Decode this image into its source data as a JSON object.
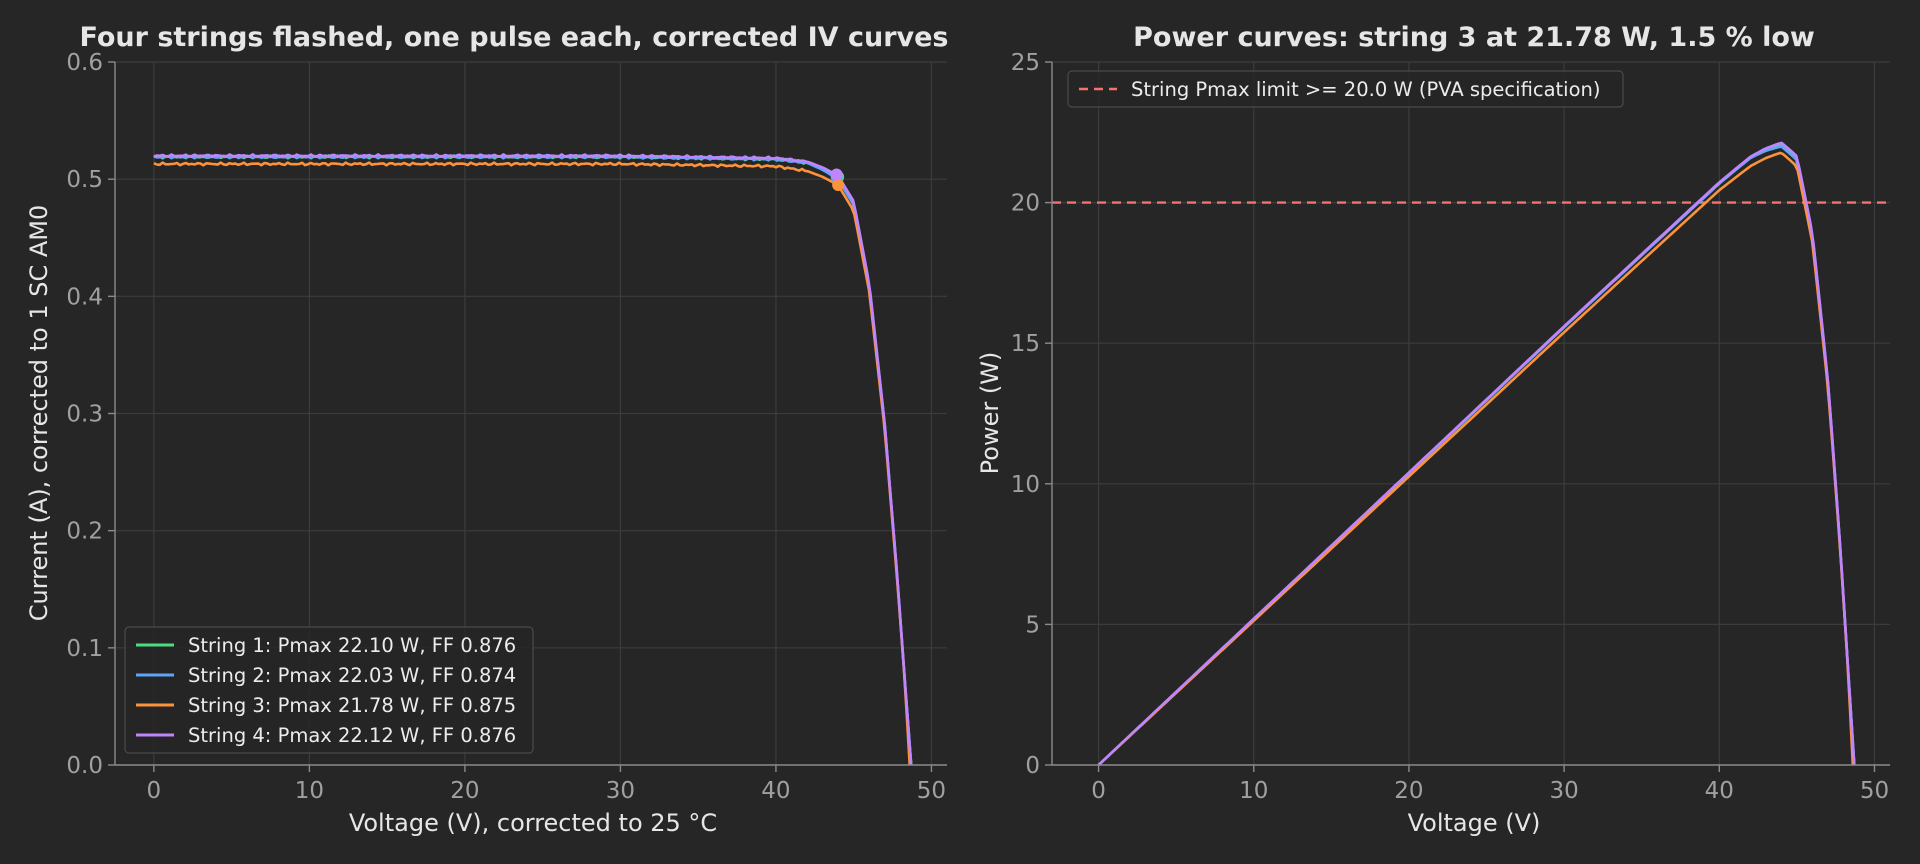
{
  "chart_data": [
    {
      "type": "line",
      "title": "Four strings flashed, one pulse each, corrected IV curves",
      "xlabel": "Voltage (V), corrected to 25 °C",
      "ylabel": "Current (A), corrected to 1 SC AM0",
      "xlim": [
        -2.5,
        51
      ],
      "ylim": [
        0.0,
        0.6
      ],
      "xticks": [
        0,
        10,
        20,
        30,
        40,
        50
      ],
      "yticks": [
        0.0,
        0.1,
        0.2,
        0.3,
        0.4,
        0.5,
        0.6
      ],
      "xtick_labels": [
        "0",
        "10",
        "20",
        "30",
        "40",
        "50"
      ],
      "ytick_labels": [
        "0.0",
        "0.1",
        "0.2",
        "0.3",
        "0.4",
        "0.5",
        "0.6"
      ],
      "grid": true,
      "legend_position": "lower-left",
      "series": [
        {
          "name": "String 1: Pmax 22.10 W, FF 0.876",
          "color": "#4ade80",
          "isc": 0.519,
          "voc": 48.7,
          "vmp": 44.0,
          "imp": 0.502,
          "x": [
            0,
            10,
            20,
            30,
            40,
            42,
            43,
            44,
            45,
            46,
            47,
            47.8,
            48.3,
            48.7
          ],
          "y": [
            0.519,
            0.519,
            0.519,
            0.519,
            0.517,
            0.514,
            0.509,
            0.502,
            0.48,
            0.41,
            0.29,
            0.16,
            0.07,
            0.0
          ]
        },
        {
          "name": "String 2: Pmax 22.03 W, FF 0.874",
          "color": "#60a5fa",
          "isc": 0.519,
          "voc": 48.7,
          "vmp": 43.9,
          "imp": 0.502,
          "x": [
            0,
            10,
            20,
            30,
            40,
            42,
            43,
            44,
            45,
            46,
            47,
            47.8,
            48.3,
            48.7
          ],
          "y": [
            0.519,
            0.519,
            0.519,
            0.519,
            0.517,
            0.514,
            0.508,
            0.5,
            0.478,
            0.408,
            0.29,
            0.16,
            0.07,
            0.0
          ]
        },
        {
          "name": "String 3: Pmax 21.78 W, FF 0.875",
          "color": "#fb923c",
          "isc": 0.513,
          "voc": 48.6,
          "vmp": 44.0,
          "imp": 0.495,
          "x": [
            0,
            10,
            20,
            30,
            40,
            42,
            43,
            44,
            45,
            46,
            47,
            47.8,
            48.3,
            48.6
          ],
          "y": [
            0.513,
            0.513,
            0.513,
            0.513,
            0.511,
            0.507,
            0.502,
            0.495,
            0.473,
            0.404,
            0.286,
            0.158,
            0.068,
            0.0
          ]
        },
        {
          "name": "String 4: Pmax 22.12 W, FF 0.876",
          "color": "#c084fc",
          "isc": 0.52,
          "voc": 48.7,
          "vmp": 43.9,
          "imp": 0.504,
          "x": [
            0,
            10,
            20,
            30,
            40,
            42,
            43,
            44,
            45,
            46,
            47,
            47.8,
            48.3,
            48.7
          ],
          "y": [
            0.52,
            0.52,
            0.52,
            0.52,
            0.518,
            0.515,
            0.51,
            0.503,
            0.481,
            0.411,
            0.291,
            0.161,
            0.07,
            0.0
          ]
        }
      ]
    },
    {
      "type": "line",
      "title": "Power curves: string 3 at 21.78 W, 1.5 % low",
      "xlabel": "Voltage (V)",
      "ylabel": "Power (W)",
      "xlim": [
        -3,
        51
      ],
      "ylim": [
        0,
        25
      ],
      "xticks": [
        0,
        10,
        20,
        30,
        40,
        50
      ],
      "yticks": [
        0,
        5,
        10,
        15,
        20,
        25
      ],
      "xtick_labels": [
        "0",
        "10",
        "20",
        "30",
        "40",
        "50"
      ],
      "ytick_labels": [
        "0",
        "5",
        "10",
        "15",
        "20",
        "25"
      ],
      "grid": true,
      "legend_position": "top-left",
      "reference_line": {
        "label": "String Pmax limit >= 20.0 W (PVA specification)",
        "y": 20.0,
        "color": "#f87171",
        "style": "dashed"
      },
      "series": [
        {
          "name": "String 1",
          "color": "#4ade80",
          "x_from_iv": true
        },
        {
          "name": "String 2",
          "color": "#60a5fa",
          "x_from_iv": true
        },
        {
          "name": "String 3",
          "color": "#fb923c",
          "x_from_iv": true
        },
        {
          "name": "String 4",
          "color": "#c084fc",
          "x_from_iv": true
        }
      ]
    }
  ]
}
